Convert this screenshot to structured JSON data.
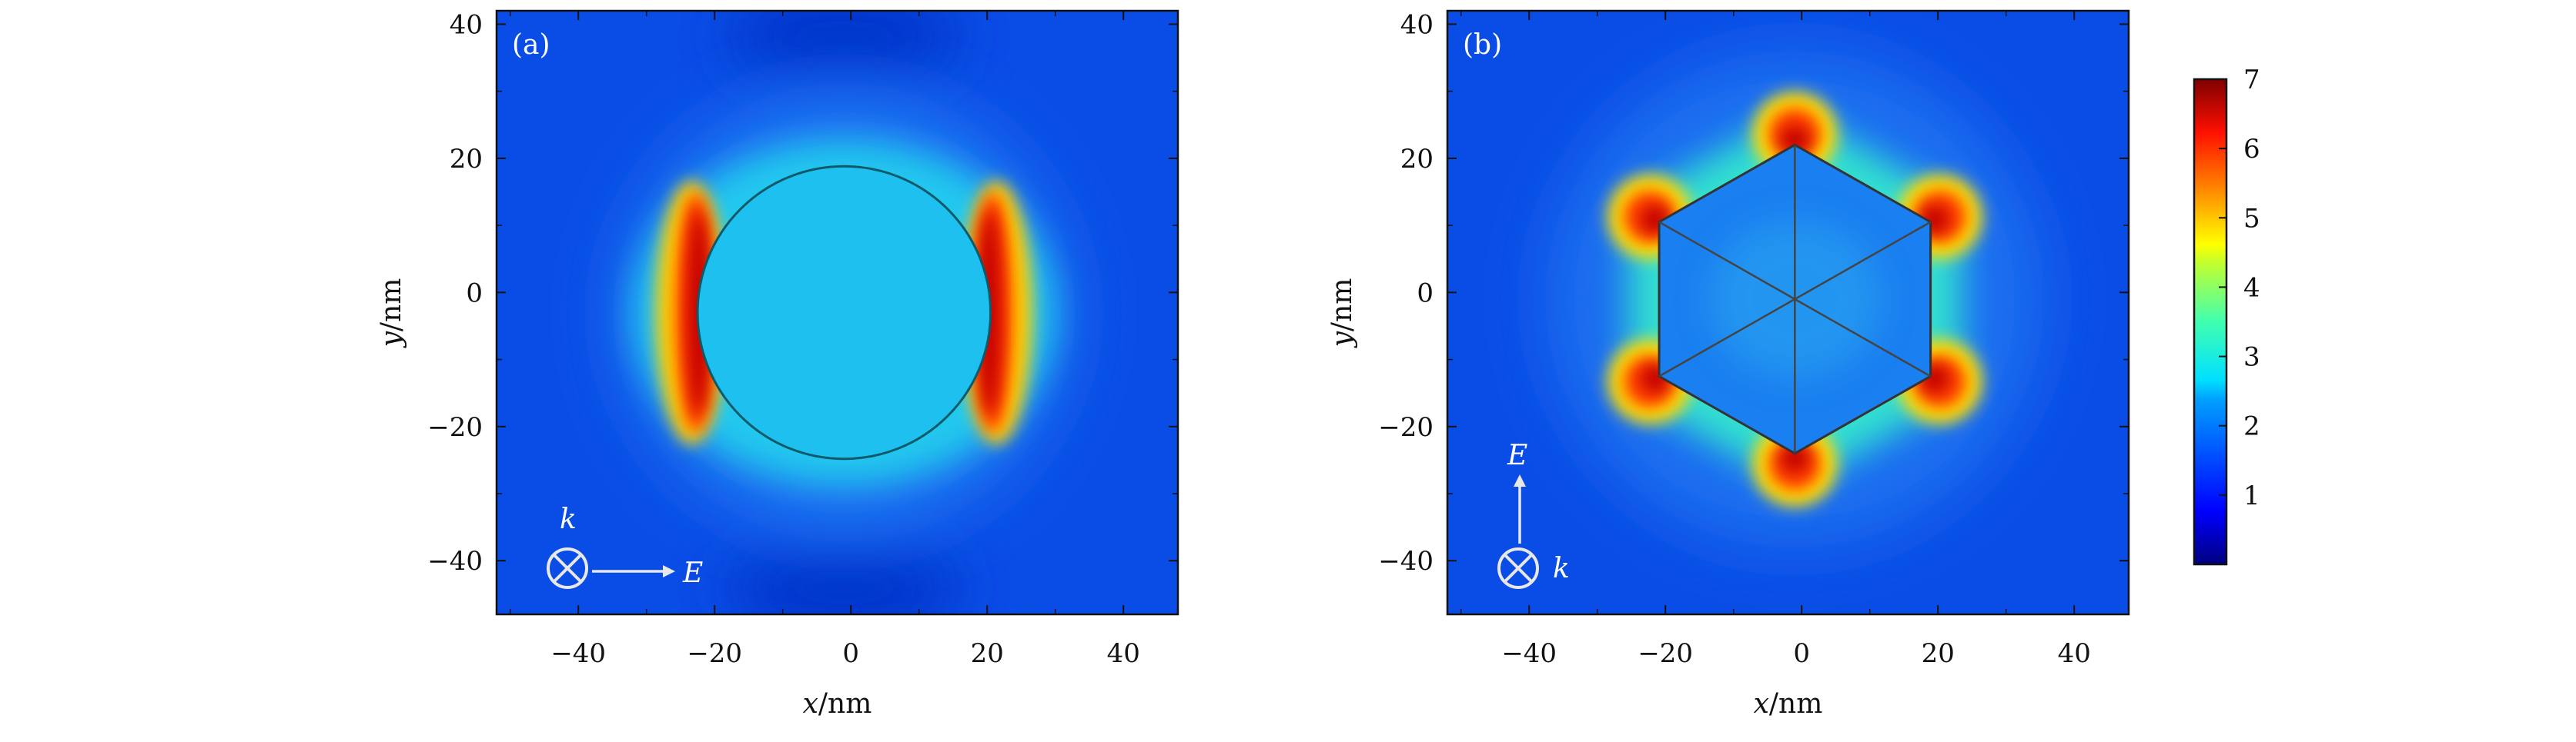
{
  "chart_data": [
    {
      "type": "heatmap",
      "panel_label": "(a)",
      "xlabel": "x/nm",
      "ylabel": "y/nm",
      "xlim": [
        -52,
        48
      ],
      "ylim": [
        -48,
        42
      ],
      "xticks": [
        -40,
        -20,
        0,
        20,
        40
      ],
      "yticks": [
        -40,
        -20,
        0,
        20,
        40
      ],
      "particle": {
        "shape": "circle",
        "center": [
          -1,
          -3
        ],
        "radius": 21.5
      },
      "interior_value": 2.2,
      "background_value": 1.0,
      "hotspots": [
        {
          "location": "left edge",
          "peak_value": 7
        },
        {
          "location": "right edge",
          "peak_value": 7
        }
      ],
      "annotations": {
        "wave_vector": "k",
        "field": "E",
        "field_direction": "horizontal"
      }
    },
    {
      "type": "heatmap",
      "panel_label": "(b)",
      "xlabel": "x/nm",
      "ylabel": "y/nm",
      "xlim": [
        -52,
        48
      ],
      "ylim": [
        -48,
        42
      ],
      "xticks": [
        -40,
        -20,
        0,
        20,
        40
      ],
      "yticks": [
        -40,
        -20,
        0,
        20,
        40
      ],
      "particle": {
        "shape": "hexagon",
        "center": [
          -1,
          -1
        ],
        "circumradius": 23
      },
      "interior_value": 1.8,
      "background_value": 1.0,
      "hotspots": [
        {
          "location": "vertices",
          "peak_value": 7
        }
      ],
      "annotations": {
        "wave_vector": "k",
        "field": "E",
        "field_direction": "vertical"
      }
    }
  ],
  "colorbar": {
    "min": 0,
    "max": 7,
    "ticks": [
      1,
      2,
      3,
      4,
      5,
      6,
      7
    ],
    "colormap": "jet"
  },
  "colors": {
    "background_field": "#0a4de6",
    "particle_interior_a": "#1ec0f0",
    "particle_interior_b": "#1a7ff0",
    "hot": "#c00000",
    "axis": "#111111"
  }
}
